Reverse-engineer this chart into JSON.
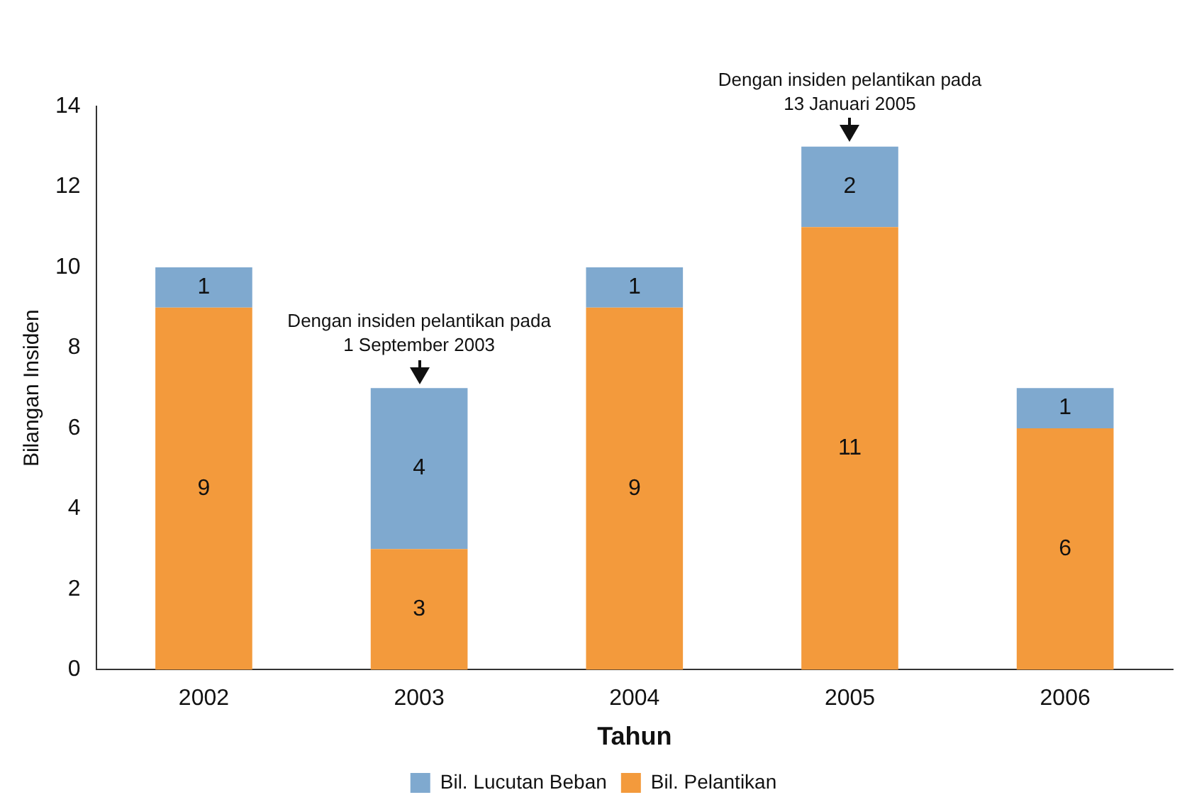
{
  "chart_data": {
    "type": "bar",
    "stacked": true,
    "xlabel": "Tahun",
    "ylabel": "Bilangan Insiden",
    "categories": [
      "2002",
      "2003",
      "2004",
      "2005",
      "2006"
    ],
    "series": [
      {
        "name": "Bil. Pelantikan",
        "color": "#f39a3c",
        "values": [
          9,
          3,
          9,
          11,
          6
        ]
      },
      {
        "name": "Bil. Lucutan Beban",
        "color": "#7fa9cf",
        "values": [
          1,
          4,
          1,
          2,
          1
        ]
      }
    ],
    "ylim": [
      0,
      14
    ],
    "yticks": [
      0,
      2,
      4,
      6,
      8,
      10,
      12,
      14
    ],
    "grid": false,
    "legend": "bottom",
    "data_labels": true,
    "annotations": [
      {
        "text": "Dengan insiden pelantikan pada\n1 September 2003",
        "x": "2003",
        "y": 7
      },
      {
        "text": "Dengan insiden pelantikan pada\n13 Januari 2005",
        "x": "2005",
        "y": 13
      }
    ]
  }
}
